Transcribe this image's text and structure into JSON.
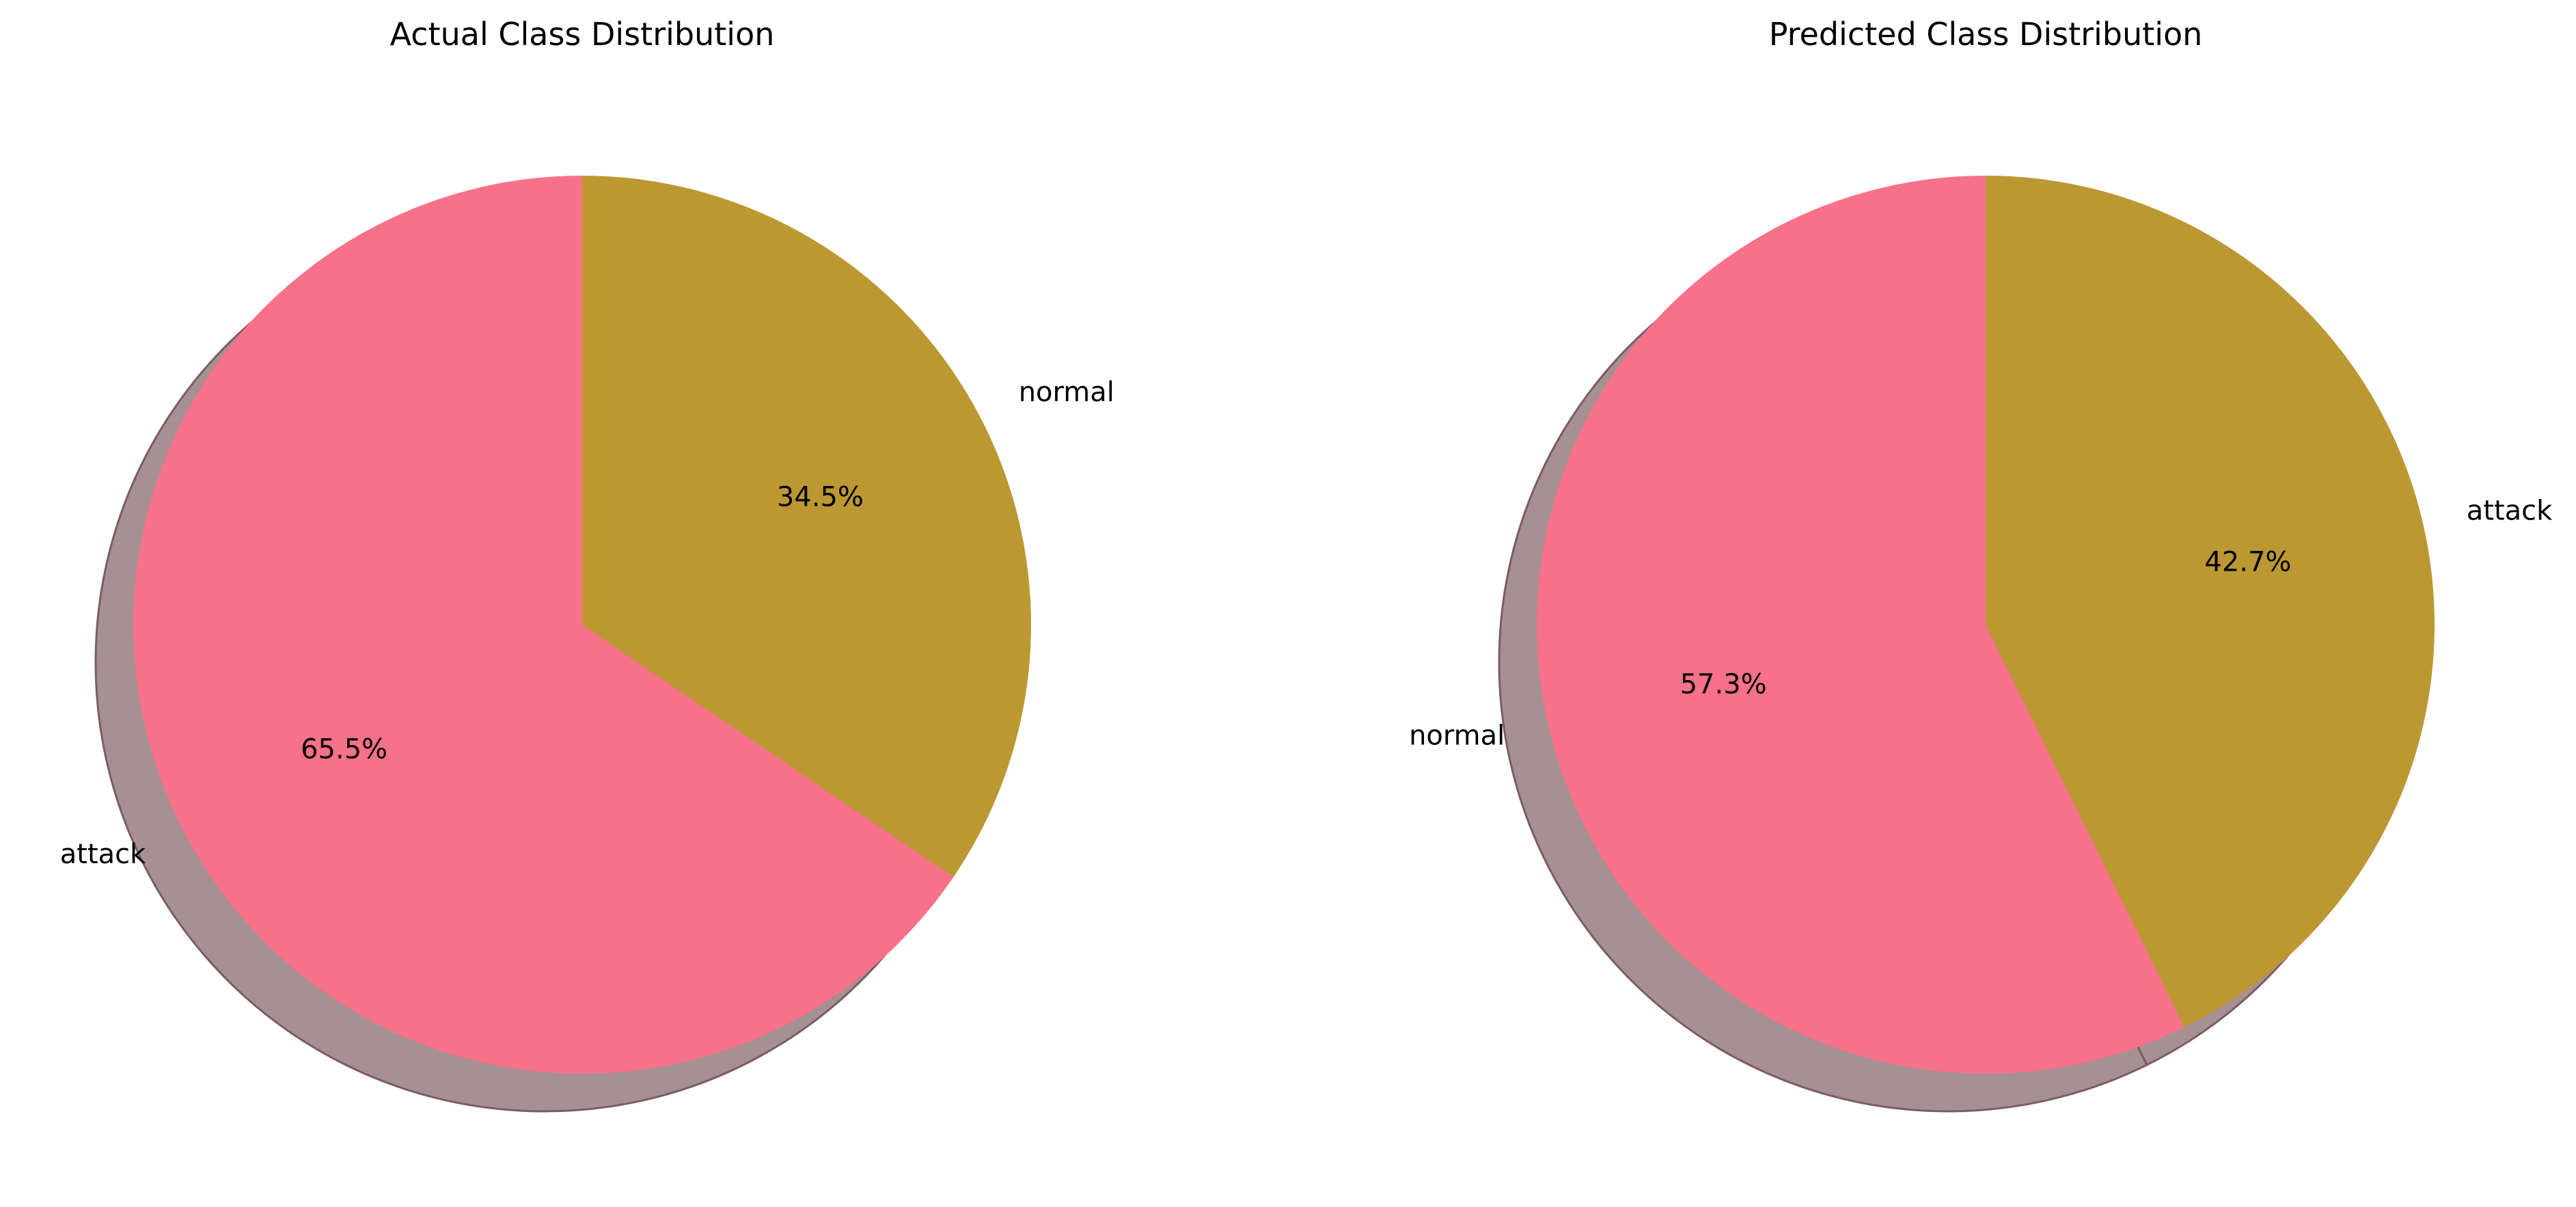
{
  "chart_data": [
    {
      "type": "pie",
      "title": "Actual Class Distribution",
      "labels": [
        "attack",
        "normal"
      ],
      "values": [
        65.5,
        34.5
      ],
      "autopct_labels": [
        "65.5%",
        "34.5%"
      ],
      "colors": [
        "#f77189",
        "#bb9832"
      ],
      "start_angle_deg": 90,
      "shadow": true,
      "shadow_color": "#a59093",
      "legend": "none"
    },
    {
      "type": "pie",
      "title": "Predicted Class Distribution",
      "labels": [
        "normal",
        "attack"
      ],
      "values": [
        57.3,
        42.7
      ],
      "autopct_labels": [
        "57.3%",
        "42.7%"
      ],
      "colors": [
        "#f77189",
        "#bb9832"
      ],
      "start_angle_deg": 90,
      "shadow": true,
      "shadow_color": "#a59093",
      "legend": "none"
    }
  ]
}
